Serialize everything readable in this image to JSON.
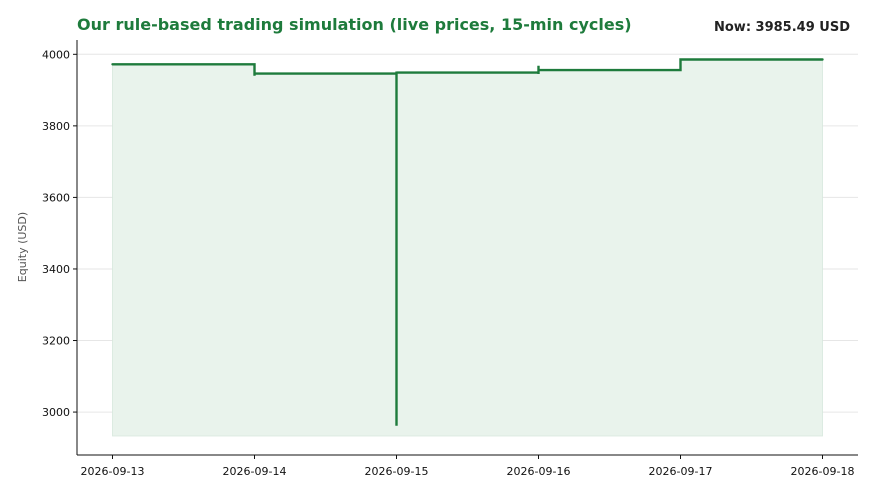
{
  "header": {
    "title": "Our rule-based trading simulation (live prices, 15-min cycles)",
    "now_label": "Now: 3985.49 USD"
  },
  "colors": {
    "line": "#1e7b3c",
    "fill": "#e9f3ec",
    "title": "#1e7b3c",
    "grid": "#e6e6e6",
    "axis": "#111111"
  },
  "chart_data": {
    "type": "area",
    "title": "Our rule-based trading simulation (live prices, 15-min cycles)",
    "annotation": "Now: 3985.49 USD",
    "xlabel": "",
    "ylabel": "Equity (USD)",
    "x_ticks": [
      "2026-09-13",
      "2026-09-14",
      "2026-09-15",
      "2026-09-16",
      "2026-09-17",
      "2026-09-18"
    ],
    "y_ticks": [
      3000,
      3200,
      3400,
      3600,
      3800,
      4000
    ],
    "xlim": [
      "2026-09-12 18:00",
      "2026-09-18 06:00"
    ],
    "ylim": [
      2880,
      4040
    ],
    "area_baseline": 2933,
    "grid": "y",
    "series": [
      {
        "x": [
          "2026-09-13 00:00",
          "2026-09-14 00:00",
          "2026-09-14 00:00",
          "2026-09-14 00:00",
          "2026-09-14 00:00",
          "2026-09-15 00:00",
          "2026-09-15 00:00",
          "2026-09-15 00:00",
          "2026-09-15 00:00",
          "2026-09-16 00:00",
          "2026-09-16 00:00",
          "2026-09-16 00:00",
          "2026-09-16 00:00",
          "2026-09-17 00:00",
          "2026-09-17 00:00",
          "2026-09-18 00:00"
        ],
        "y": [
          3972,
          3972,
          3940,
          3952,
          3946,
          3946,
          2962,
          3952,
          3949,
          3949,
          3945,
          3968,
          3956,
          3956,
          3985.49,
          3985.49
        ]
      }
    ]
  }
}
